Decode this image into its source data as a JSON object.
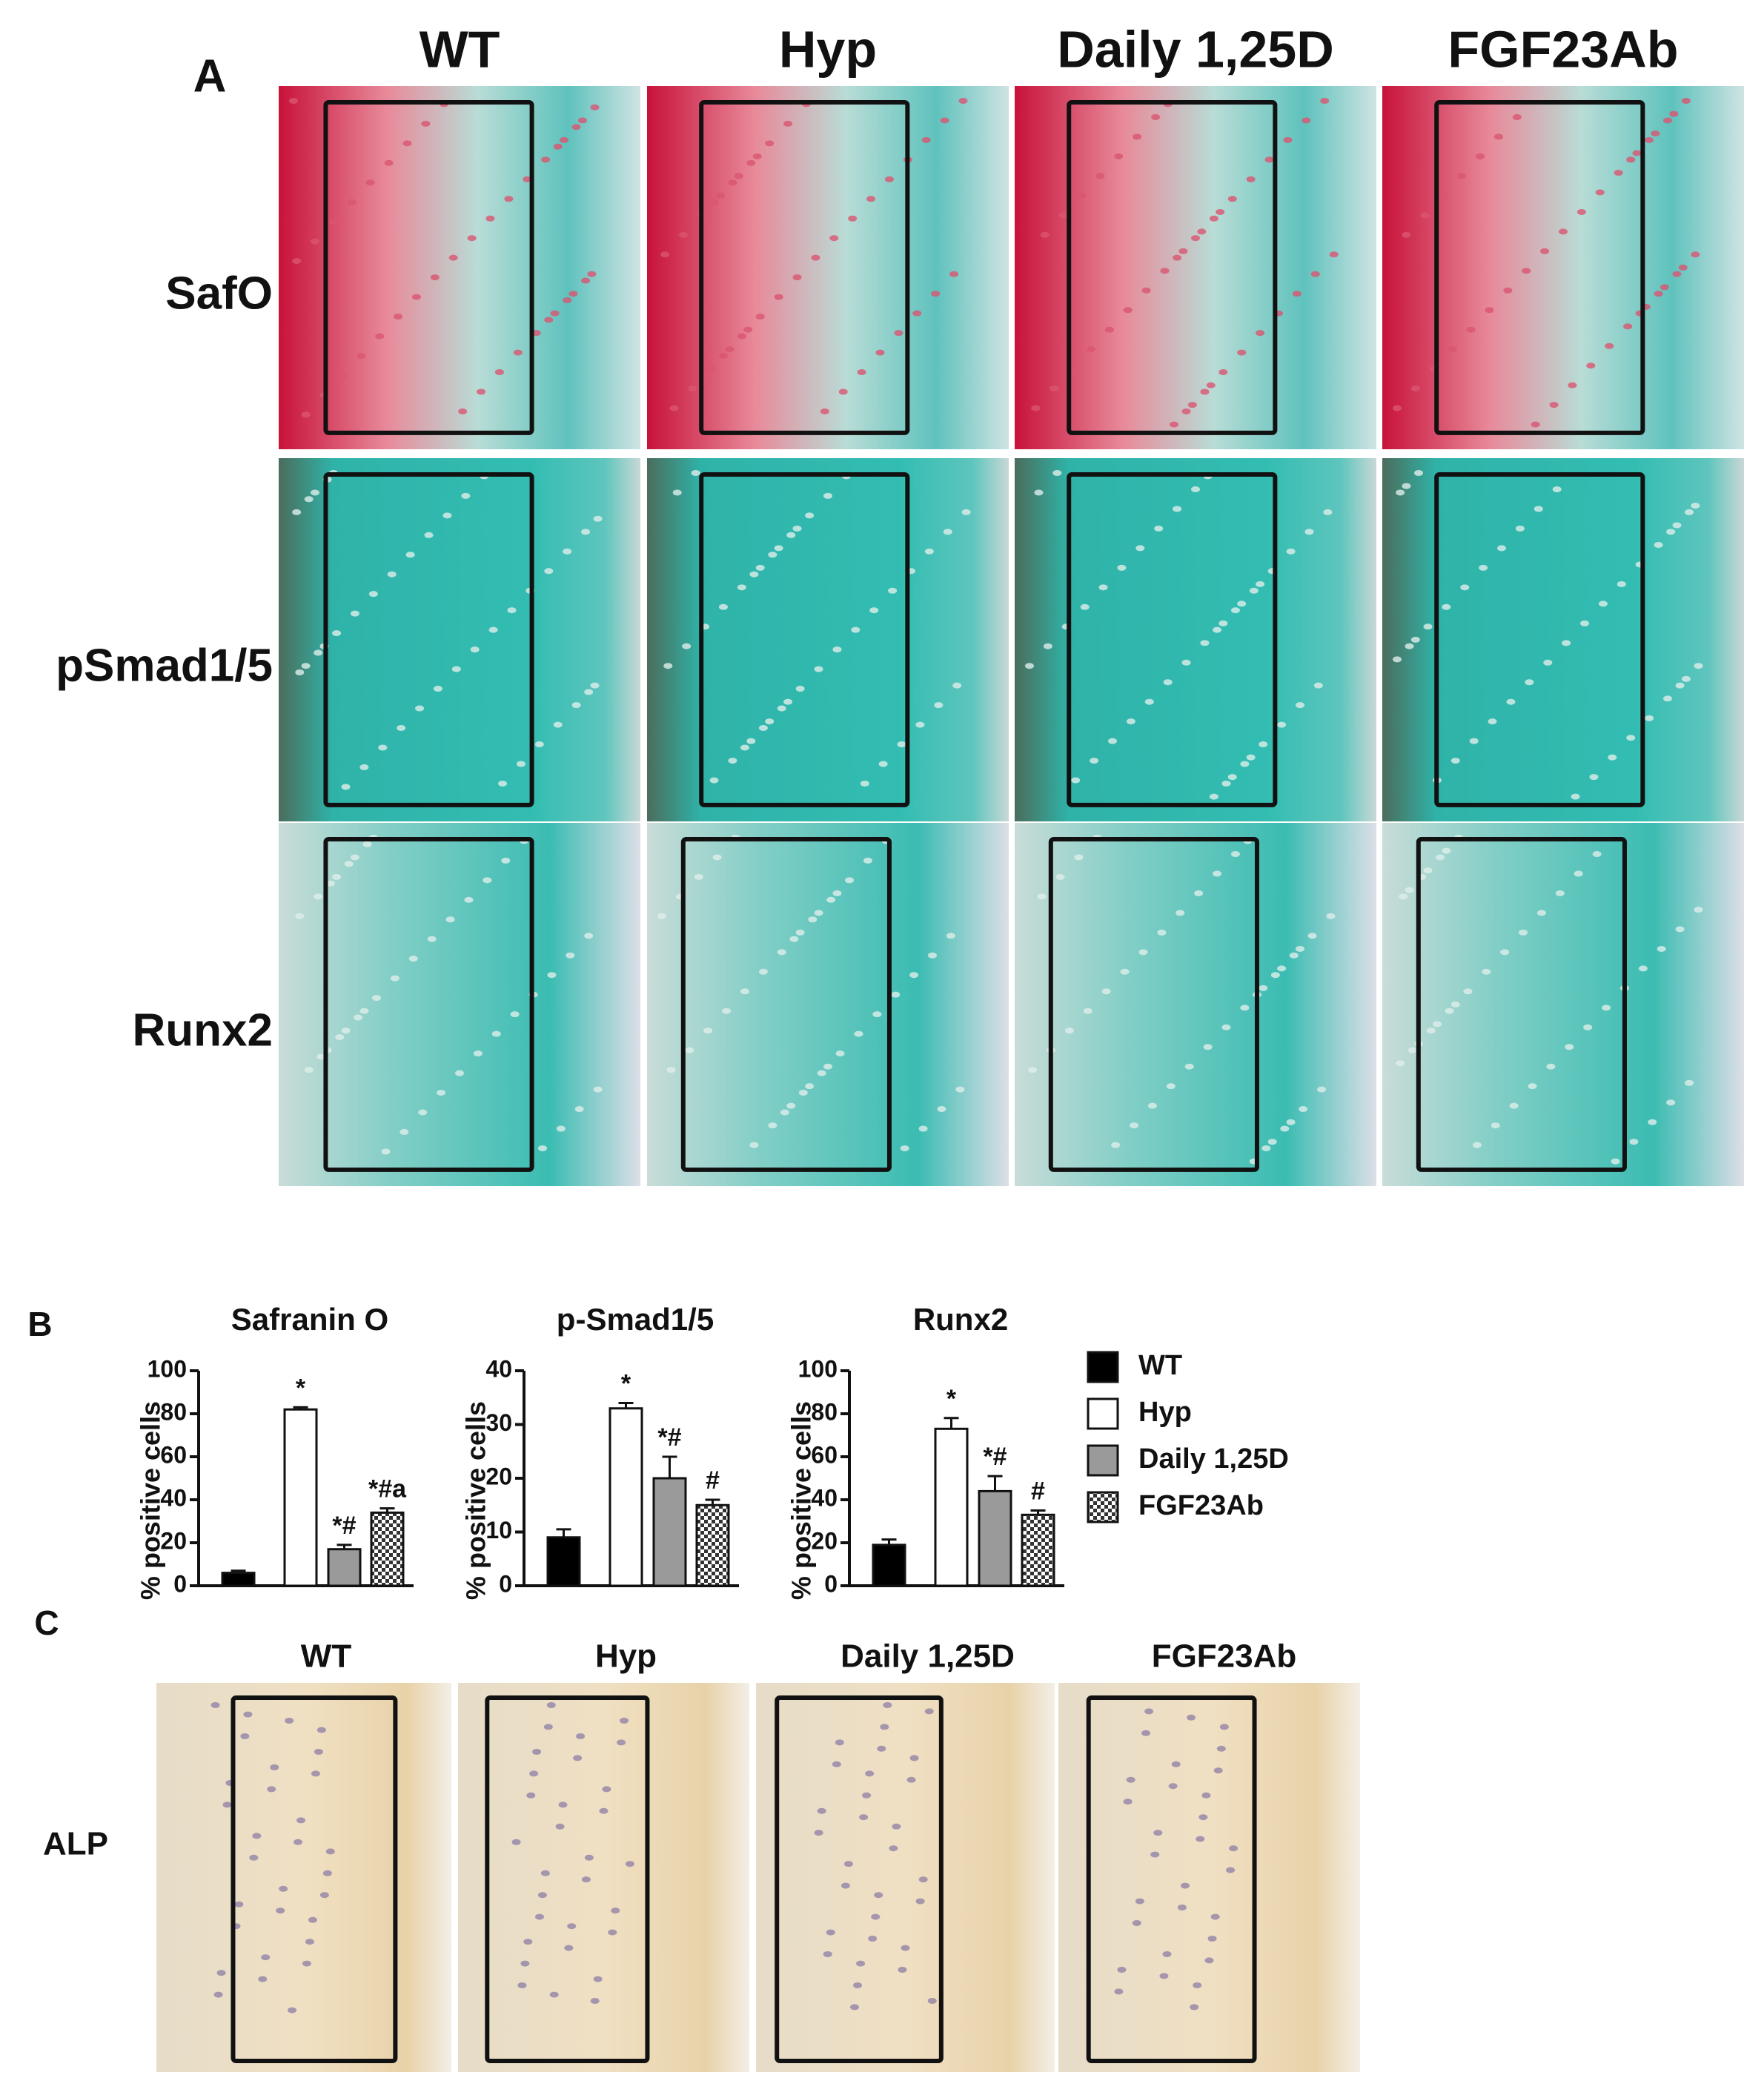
{
  "panel_a": {
    "label": "A",
    "columns": [
      "WT",
      "Hyp",
      "Daily 1,25D",
      "FGF23Ab"
    ],
    "rows": [
      "SafO",
      "pSmad1/5",
      "Runx2"
    ]
  },
  "panel_b": {
    "label": "B"
  },
  "legend": [
    {
      "name": "WT",
      "color": "#000000"
    },
    {
      "name": "Hyp",
      "color": "#ffffff"
    },
    {
      "name": "Daily 1,25D",
      "color": "#9a9a9a"
    },
    {
      "name": "FGF23Ab",
      "color": "#8a8a8a",
      "pattern": "checker"
    }
  ],
  "chart_data": [
    {
      "type": "bar",
      "title": "Safranin O",
      "y_label": "% positive cells",
      "values": [
        6,
        82,
        17,
        34
      ],
      "errors": [
        1,
        1,
        2,
        2
      ],
      "annotations": [
        null,
        "*",
        "*#",
        "*#a"
      ],
      "ylim": [
        0,
        100
      ],
      "yticks": [
        0,
        20,
        40,
        60,
        80,
        100
      ]
    },
    {
      "type": "bar",
      "title": "p-Smad1/5",
      "y_label": "% positive cells",
      "values": [
        9,
        33,
        20,
        15
      ],
      "errors": [
        1.5,
        1,
        4,
        1
      ],
      "annotations": [
        null,
        "*",
        "*#",
        "#"
      ],
      "ylim": [
        0,
        40
      ],
      "yticks": [
        0,
        10,
        20,
        30,
        40
      ]
    },
    {
      "type": "bar",
      "title": "Runx2",
      "y_label": "% positive cells",
      "values": [
        19,
        73,
        44,
        33
      ],
      "errors": [
        2.5,
        5,
        7,
        2
      ],
      "annotations": [
        null,
        "*",
        "*#",
        "#"
      ],
      "ylim": [
        0,
        100
      ],
      "yticks": [
        0,
        20,
        40,
        60,
        80,
        100
      ]
    }
  ],
  "panel_c": {
    "label": "C",
    "columns": [
      "WT",
      "Hyp",
      "Daily 1,25D",
      "FGF23Ab"
    ],
    "rows": [
      "ALP"
    ]
  }
}
